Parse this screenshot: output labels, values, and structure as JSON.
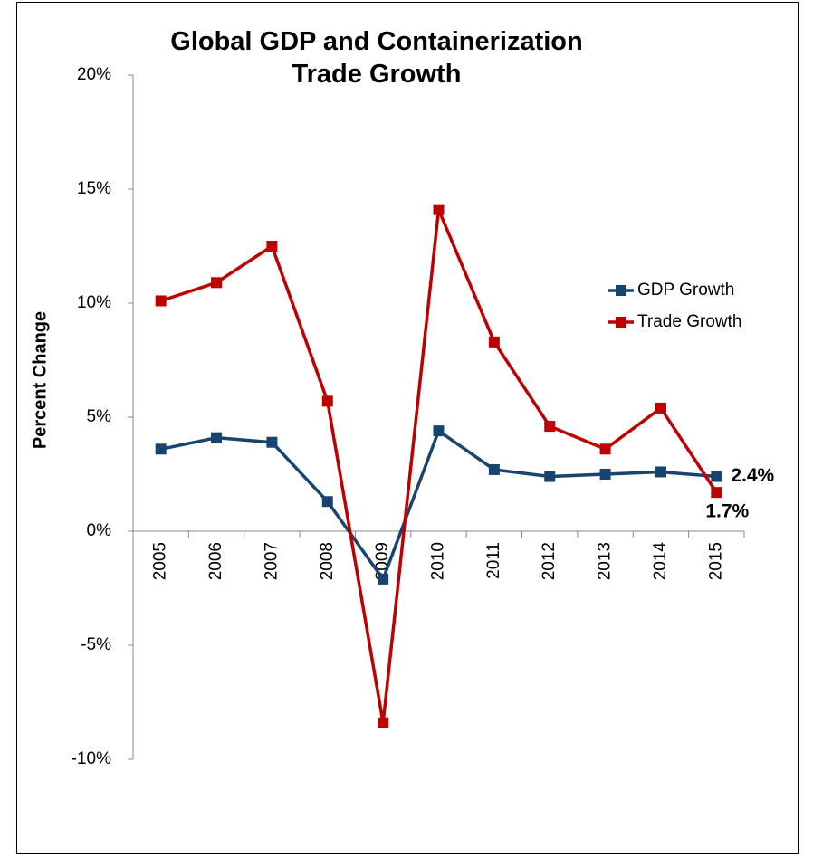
{
  "chart_data": {
    "type": "line",
    "title": "Global GDP and Containerization Trade Growth",
    "y_label": "Percent Change",
    "categories": [
      "2005",
      "2006",
      "2007",
      "2008",
      "2009",
      "2010",
      "2011",
      "2012",
      "2013",
      "2014",
      "2015"
    ],
    "series": [
      {
        "name": "GDP Growth",
        "color": "#17456f",
        "values": [
          3.6,
          4.1,
          3.9,
          1.3,
          -2.1,
          4.4,
          2.7,
          2.4,
          2.5,
          2.6,
          2.4
        ],
        "value_labels": [
          null,
          null,
          null,
          null,
          null,
          null,
          null,
          null,
          null,
          null,
          "2.4%"
        ]
      },
      {
        "name": "Trade Growth",
        "color": "#c00000",
        "values": [
          10.1,
          10.9,
          12.5,
          5.7,
          -8.4,
          14.1,
          8.3,
          4.6,
          3.6,
          5.4,
          1.7
        ],
        "value_labels": [
          null,
          null,
          null,
          null,
          null,
          null,
          null,
          null,
          null,
          null,
          "1.7%"
        ]
      }
    ],
    "ylim": [
      -10,
      20
    ],
    "yticks": [
      {
        "value": -10,
        "label": "-10%"
      },
      {
        "value": -5,
        "label": "-5%"
      },
      {
        "value": 0,
        "label": "0%"
      },
      {
        "value": 5,
        "label": "5%"
      },
      {
        "value": 10,
        "label": "10%"
      },
      {
        "value": 15,
        "label": "15%"
      },
      {
        "value": 20,
        "label": "20%"
      }
    ],
    "grid": false,
    "legend": "right"
  }
}
